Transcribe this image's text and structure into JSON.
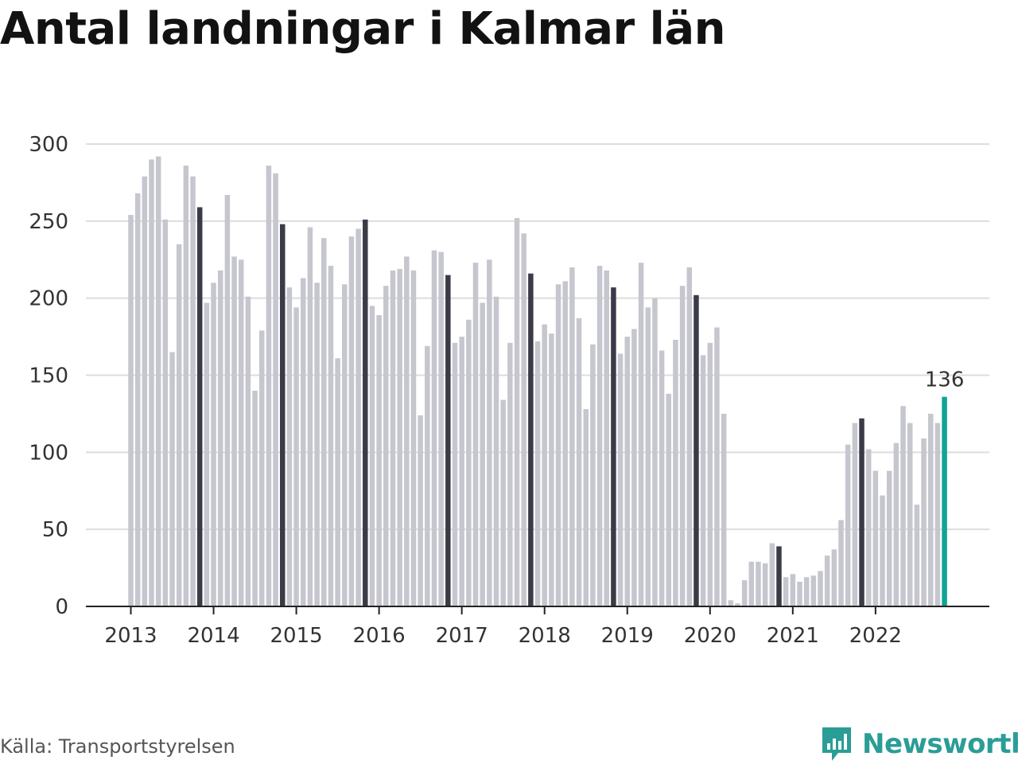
{
  "title": "Antal landningar i Kalmar län",
  "source": "Källa: Transportstyrelsen",
  "brand": "Newsworthy",
  "colors": {
    "bar_default": "#c6c6cf",
    "bar_highlight": "#3b3b48",
    "bar_latest": "#11a395",
    "grid": "#dddddd",
    "axis": "#222222",
    "brand": "#2a9d96"
  },
  "chart_data": {
    "type": "bar",
    "title": "Antal landningar i Kalmar län",
    "xlabel": "",
    "ylabel": "",
    "ylim": [
      0,
      300
    ],
    "yticks": [
      "0",
      "50",
      "100",
      "150",
      "200",
      "250",
      "300"
    ],
    "xticks": [
      "2013",
      "2014",
      "2015",
      "2016",
      "2017",
      "2018",
      "2019",
      "2020",
      "2021",
      "2022"
    ],
    "grid": true,
    "period": "monthly, Jan 2013 – Nov 2022",
    "highlighted_month": "November",
    "latest_label": "136",
    "series": [
      {
        "values": [
          254,
          268,
          279,
          290,
          292,
          251,
          165,
          235,
          286,
          279,
          259,
          197,
          210,
          218,
          267,
          227,
          225,
          201,
          140,
          179,
          286,
          281,
          248,
          207,
          194,
          213,
          246,
          210,
          239,
          221,
          161,
          209,
          240,
          245,
          251,
          195,
          189,
          208,
          218,
          219,
          227,
          218,
          124,
          169,
          231,
          230,
          215,
          171,
          175,
          186,
          223,
          197,
          225,
          201,
          134,
          171,
          252,
          242,
          216,
          172,
          183,
          177,
          209,
          211,
          220,
          187,
          128,
          170,
          221,
          218,
          207,
          164,
          175,
          180,
          223,
          194,
          200,
          166,
          138,
          173,
          208,
          220,
          202,
          163,
          171,
          181,
          125,
          4,
          2,
          17,
          29,
          29,
          28,
          41,
          39,
          19,
          21,
          16,
          19,
          20,
          23,
          33,
          37,
          56,
          105,
          119,
          122,
          102,
          88,
          72,
          88,
          106,
          130,
          119,
          66,
          109,
          125,
          119,
          136
        ]
      }
    ]
  }
}
